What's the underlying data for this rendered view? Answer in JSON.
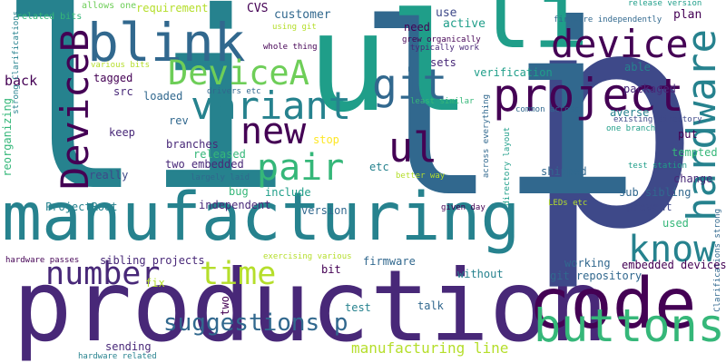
{
  "palette": {
    "dark_purple": "#440154",
    "purple": "#482878",
    "indigo": "#3e4989",
    "blue": "#31688e",
    "teal_blue": "#26828e",
    "teal": "#1f9e89",
    "green_teal": "#35b779",
    "green": "#6ece58",
    "lime": "#b5de2b",
    "yellow": "#fde725"
  },
  "words": [
    {
      "id": "w0",
      "text": "p"
    },
    {
      "id": "w1",
      "text": "li"
    },
    {
      "id": "w2",
      "text": "li"
    },
    {
      "id": "w3",
      "text": "ul"
    },
    {
      "id": "w4",
      "text": "li"
    },
    {
      "id": "w5",
      "text": "production"
    },
    {
      "id": "w6",
      "text": "manufacturing"
    },
    {
      "id": "w7",
      "text": "code"
    },
    {
      "id": "w8",
      "text": "blink"
    },
    {
      "id": "w9",
      "text": "device"
    },
    {
      "id": "w10",
      "text": "project"
    },
    {
      "id": "w11",
      "text": "DeviceB"
    },
    {
      "id": "w12",
      "text": "DeviceA"
    },
    {
      "id": "w13",
      "text": "git"
    },
    {
      "id": "w14",
      "text": "variant"
    },
    {
      "id": "w15",
      "text": "hardware"
    },
    {
      "id": "w16",
      "text": "buttons"
    },
    {
      "id": "w17",
      "text": "new"
    },
    {
      "id": "w18",
      "text": "pair"
    },
    {
      "id": "w19",
      "text": "ul"
    },
    {
      "id": "w20",
      "text": "know"
    },
    {
      "id": "w21",
      "text": "number"
    },
    {
      "id": "w22",
      "text": "time"
    },
    {
      "id": "w23",
      "text": "suggestions p"
    },
    {
      "id": "w24",
      "text": "manufacturing line"
    },
    {
      "id": "w25",
      "text": "back"
    },
    {
      "id": "w26",
      "text": "related bits"
    },
    {
      "id": "w27",
      "text": "allows one"
    },
    {
      "id": "w28",
      "text": "requirement"
    },
    {
      "id": "w29",
      "text": "CVS"
    },
    {
      "id": "w30",
      "text": "customer"
    },
    {
      "id": "w31",
      "text": "use"
    },
    {
      "id": "w32",
      "text": "need"
    },
    {
      "id": "w33",
      "text": "active"
    },
    {
      "id": "w34",
      "text": "using git"
    },
    {
      "id": "w35",
      "text": "whole thing"
    },
    {
      "id": "w36",
      "text": "grew organically"
    },
    {
      "id": "w37",
      "text": "typically work"
    },
    {
      "id": "w38",
      "text": "release version"
    },
    {
      "id": "w39",
      "text": "firmware independently"
    },
    {
      "id": "w40",
      "text": "plan"
    },
    {
      "id": "w41",
      "text": "packaged"
    },
    {
      "id": "w42",
      "text": "sets"
    },
    {
      "id": "w43",
      "text": "verification"
    },
    {
      "id": "w44",
      "text": "able"
    },
    {
      "id": "w45",
      "text": "various bits"
    },
    {
      "id": "w46",
      "text": "tagged"
    },
    {
      "id": "w47",
      "text": "src"
    },
    {
      "id": "w48",
      "text": "loaded"
    },
    {
      "id": "w49",
      "text": "drivers etc"
    },
    {
      "id": "w50",
      "text": "least similar"
    },
    {
      "id": "w51",
      "text": "common across"
    },
    {
      "id": "w52",
      "text": "existing directory"
    },
    {
      "id": "w53",
      "text": "averse"
    },
    {
      "id": "w54",
      "text": "one branch"
    },
    {
      "id": "w55",
      "text": "rev"
    },
    {
      "id": "w56",
      "text": "keep"
    },
    {
      "id": "w57",
      "text": "branches"
    },
    {
      "id": "w58",
      "text": "released"
    },
    {
      "id": "w59",
      "text": "two embedded"
    },
    {
      "id": "w60",
      "text": "largely laid"
    },
    {
      "id": "w61",
      "text": "stop"
    },
    {
      "id": "w62",
      "text": "etc"
    },
    {
      "id": "w63",
      "text": "put"
    },
    {
      "id": "w64",
      "text": "tempted"
    },
    {
      "id": "w65",
      "text": "test station"
    },
    {
      "id": "w66",
      "text": "shipped"
    },
    {
      "id": "w67",
      "text": "change"
    },
    {
      "id": "w68",
      "text": "sub sibling"
    },
    {
      "id": "w69",
      "text": "really"
    },
    {
      "id": "w70",
      "text": "bug"
    },
    {
      "id": "w71",
      "text": "include"
    },
    {
      "id": "w72",
      "text": "better way"
    },
    {
      "id": "w73",
      "text": "ProjectRoot"
    },
    {
      "id": "w74",
      "text": "independent"
    },
    {
      "id": "w75",
      "text": "version"
    },
    {
      "id": "w76",
      "text": "given day"
    },
    {
      "id": "w77",
      "text": "LEDs etc"
    },
    {
      "id": "w78",
      "text": "prevent"
    },
    {
      "id": "w79",
      "text": "used"
    },
    {
      "id": "w80",
      "text": "reorganizing"
    },
    {
      "id": "w81",
      "text": "strong Clarifications"
    },
    {
      "id": "w82",
      "text": "Clarifications strong"
    },
    {
      "id": "w83",
      "text": "across everything"
    },
    {
      "id": "w84",
      "text": "directory layout"
    },
    {
      "id": "w85",
      "text": "hardware passes"
    },
    {
      "id": "w86",
      "text": "sibling projects"
    },
    {
      "id": "w87",
      "text": "exercising various"
    },
    {
      "id": "w88",
      "text": "firmware"
    },
    {
      "id": "w89",
      "text": "working"
    },
    {
      "id": "w90",
      "text": "embedded devices"
    },
    {
      "id": "w91",
      "text": "git repository"
    },
    {
      "id": "w92",
      "text": "bit"
    },
    {
      "id": "w93",
      "text": "without"
    },
    {
      "id": "w94",
      "text": "fix"
    },
    {
      "id": "w95",
      "text": "talk"
    },
    {
      "id": "w96",
      "text": "two"
    },
    {
      "id": "w97",
      "text": "test"
    },
    {
      "id": "w98",
      "text": "sending"
    },
    {
      "id": "w99",
      "text": "hardware related"
    }
  ]
}
